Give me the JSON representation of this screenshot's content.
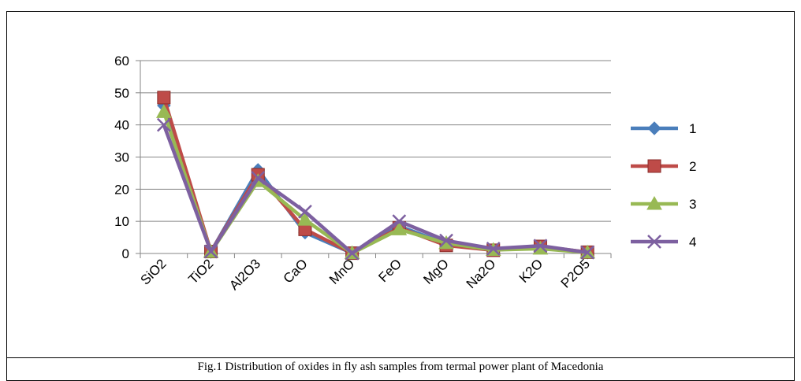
{
  "caption": "Fig.1 Distribution of oxides in  fly ash samples from termal power plant of Macedonia",
  "chart_data": {
    "type": "line",
    "title": "",
    "xlabel": "",
    "ylabel": "",
    "categories": [
      "SiO2",
      "TiO2",
      "Al2O3",
      "CaO",
      "MnO",
      "FeO",
      "MgO",
      "Na2O",
      "K2O",
      "P2O5"
    ],
    "ylim": [
      0,
      60
    ],
    "yticks": [
      "0",
      "10",
      "20",
      "30",
      "40",
      "50",
      "60"
    ],
    "grid": true,
    "legend_position": "right",
    "series": [
      {
        "name": "1",
        "color": "#4a7ebb",
        "marker": "diamond",
        "values": [
          46,
          0.5,
          26,
          6.5,
          0.1,
          8.5,
          3,
          1.2,
          2,
          0.3
        ]
      },
      {
        "name": "2",
        "color": "#be4b48",
        "marker": "square",
        "values": [
          48.5,
          0.6,
          24.5,
          7.5,
          0.1,
          8,
          2.5,
          1,
          2.2,
          0.4
        ]
      },
      {
        "name": "3",
        "color": "#98b954",
        "marker": "triangle",
        "values": [
          44,
          0.5,
          22.5,
          10.5,
          0.1,
          7.5,
          3.2,
          1.1,
          1.5,
          0.3
        ]
      },
      {
        "name": "4",
        "color": "#7d60a0",
        "marker": "x",
        "values": [
          40,
          0.6,
          23.5,
          13,
          0.1,
          10,
          4,
          1.5,
          2.4,
          0.3
        ]
      }
    ]
  }
}
